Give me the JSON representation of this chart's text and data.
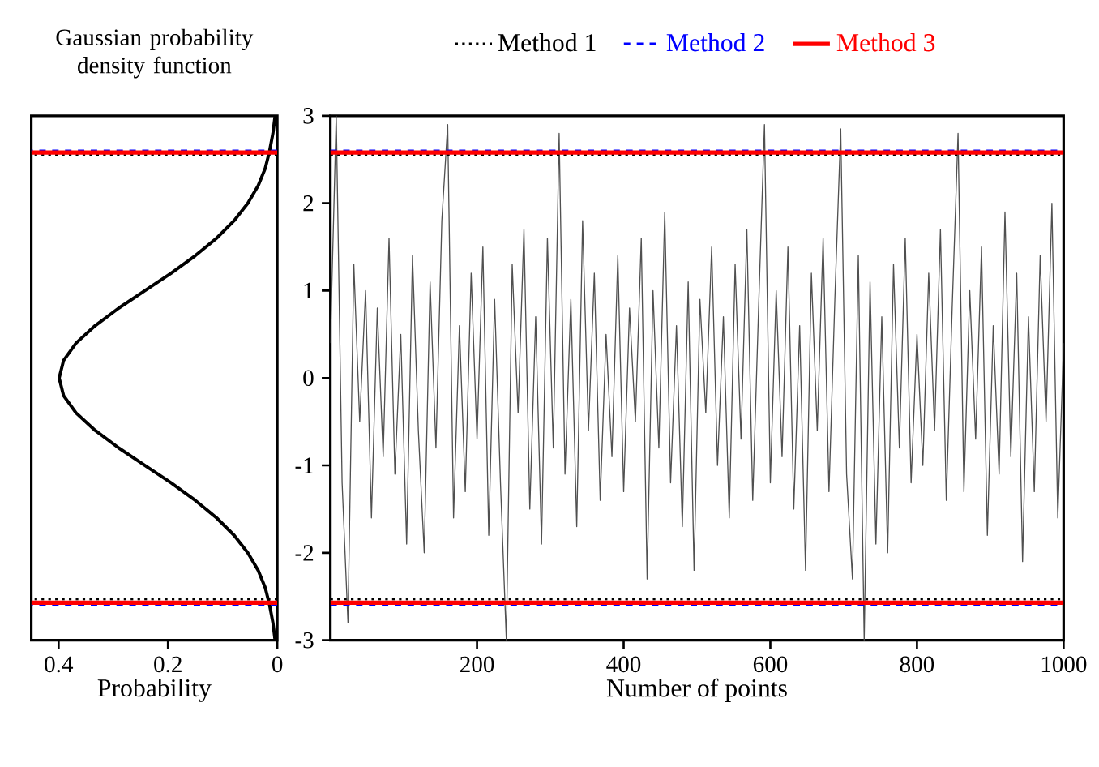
{
  "chart_data": [
    {
      "type": "line",
      "title": "Gaussian probability density function",
      "xlabel": "Probability",
      "xlim": [
        0.45,
        0
      ],
      "xticks": [
        0.4,
        0.2,
        0
      ],
      "ylim": [
        -3,
        3
      ],
      "yticks": [
        -3,
        -2,
        -1,
        0,
        1,
        2,
        3
      ],
      "tick_labels": "x",
      "marker": "none",
      "series": [
        {
          "color": "#000000",
          "x": [
            0.004,
            0.008,
            0.014,
            0.022,
            0.035,
            0.054,
            0.079,
            0.111,
            0.15,
            0.194,
            0.242,
            0.29,
            0.333,
            0.368,
            0.391,
            0.399,
            0.391,
            0.368,
            0.333,
            0.29,
            0.242,
            0.194,
            0.15,
            0.111,
            0.079,
            0.054,
            0.035,
            0.022,
            0.014,
            0.008,
            0.004
          ],
          "values": [
            -3,
            -2.8,
            -2.6,
            -2.4,
            -2.2,
            -2.0,
            -1.8,
            -1.6,
            -1.4,
            -1.2,
            -1.0,
            -0.8,
            -0.6,
            -0.4,
            -0.2,
            0,
            0.2,
            0.4,
            0.6,
            0.8,
            1.0,
            1.2,
            1.4,
            1.6,
            1.8,
            2.0,
            2.2,
            2.4,
            2.6,
            2.8,
            3
          ]
        }
      ],
      "ref_lines": [
        {
          "axis": "y",
          "value": 2.55,
          "color": "#000000",
          "line_style": "dotted"
        },
        {
          "axis": "y",
          "value": -2.53,
          "color": "#000000",
          "line_style": "dotted"
        },
        {
          "axis": "y",
          "value": 2.6,
          "color": "#0000ff",
          "line_style": "dashed"
        },
        {
          "axis": "y",
          "value": -2.6,
          "color": "#0000ff",
          "line_style": "dashed"
        },
        {
          "axis": "y",
          "value": 2.58,
          "color": "#ff0000",
          "line_style": "solid"
        },
        {
          "axis": "y",
          "value": -2.57,
          "color": "#ff0000",
          "line_style": "solid"
        }
      ]
    },
    {
      "type": "line",
      "xlabel": "Number of points",
      "xlim": [
        0,
        1000
      ],
      "xticks": [
        200,
        400,
        600,
        800,
        1000
      ],
      "ylim": [
        -3,
        3
      ],
      "yticks": [
        -3,
        -2,
        -1,
        0,
        1,
        2,
        3
      ],
      "legend": "top",
      "marker": "none",
      "series": [
        {
          "color": "#505050",
          "x": [
            0,
            8,
            16,
            24,
            32,
            40,
            48,
            56,
            64,
            72,
            80,
            88,
            96,
            104,
            112,
            120,
            128,
            136,
            144,
            152,
            160,
            168,
            176,
            184,
            192,
            200,
            208,
            216,
            224,
            232,
            240,
            248,
            256,
            264,
            272,
            280,
            288,
            296,
            304,
            312,
            320,
            328,
            336,
            344,
            352,
            360,
            368,
            376,
            384,
            392,
            400,
            408,
            416,
            424,
            432,
            440,
            448,
            456,
            464,
            472,
            480,
            488,
            496,
            504,
            512,
            520,
            528,
            536,
            544,
            552,
            560,
            568,
            576,
            584,
            592,
            600,
            608,
            616,
            624,
            632,
            640,
            648,
            656,
            664,
            672,
            680,
            688,
            696,
            704,
            712,
            720,
            728,
            736,
            744,
            752,
            760,
            768,
            776,
            784,
            792,
            800,
            808,
            816,
            824,
            832,
            840,
            848,
            856,
            864,
            872,
            880,
            888,
            896,
            904,
            912,
            920,
            928,
            936,
            944,
            952,
            960,
            968,
            976,
            984,
            992,
            1000
          ],
          "values": [
            0.4,
            3.0,
            -1.2,
            -2.8,
            1.3,
            -0.5,
            1.0,
            -1.6,
            0.8,
            -0.9,
            1.6,
            -1.1,
            0.5,
            -1.9,
            1.4,
            -0.6,
            -2.0,
            1.1,
            -0.8,
            1.8,
            2.9,
            -1.6,
            0.6,
            -1.3,
            1.2,
            -0.7,
            1.5,
            -1.8,
            0.9,
            -1.2,
            -3.0,
            1.3,
            -0.4,
            1.7,
            -1.5,
            0.7,
            -1.9,
            1.6,
            -0.8,
            2.8,
            -1.1,
            0.9,
            -1.7,
            1.8,
            -0.6,
            1.2,
            -1.4,
            0.5,
            -0.9,
            1.4,
            -1.3,
            0.8,
            -0.5,
            1.6,
            -2.3,
            1.0,
            -0.8,
            1.9,
            -1.2,
            0.6,
            -1.7,
            1.1,
            -2.2,
            0.9,
            -0.4,
            1.5,
            -1.0,
            0.7,
            -1.6,
            1.3,
            -0.7,
            1.7,
            -1.4,
            0.8,
            2.9,
            -1.2,
            1.0,
            -0.9,
            1.5,
            -1.5,
            0.6,
            -2.2,
            1.2,
            -0.6,
            1.6,
            -1.3,
            0.9,
            2.85,
            -1.1,
            -2.3,
            1.4,
            -3.0,
            1.1,
            -1.9,
            0.7,
            -2.0,
            1.3,
            -0.8,
            1.6,
            -1.2,
            0.5,
            -1.0,
            1.2,
            -0.6,
            1.7,
            -1.4,
            0.8,
            2.8,
            -1.3,
            1.0,
            -0.7,
            1.5,
            -1.8,
            0.6,
            -1.1,
            1.9,
            -0.9,
            1.2,
            -2.1,
            0.7,
            -1.3,
            1.4,
            -0.5,
            2.0,
            -1.6,
            0.4
          ]
        }
      ],
      "ref_lines": [
        {
          "axis": "y",
          "value": 2.55,
          "color": "#000000",
          "line_style": "dotted",
          "label": "Method 1"
        },
        {
          "axis": "y",
          "value": -2.53,
          "color": "#000000",
          "line_style": "dotted"
        },
        {
          "axis": "y",
          "value": 2.6,
          "color": "#0000ff",
          "line_style": "dashed",
          "label": "Method 2"
        },
        {
          "axis": "y",
          "value": -2.6,
          "color": "#0000ff",
          "line_style": "dashed"
        },
        {
          "axis": "y",
          "value": 2.58,
          "color": "#ff0000",
          "line_style": "solid",
          "label": "Method 3"
        },
        {
          "axis": "y",
          "value": -2.57,
          "color": "#ff0000",
          "line_style": "solid"
        }
      ]
    }
  ]
}
